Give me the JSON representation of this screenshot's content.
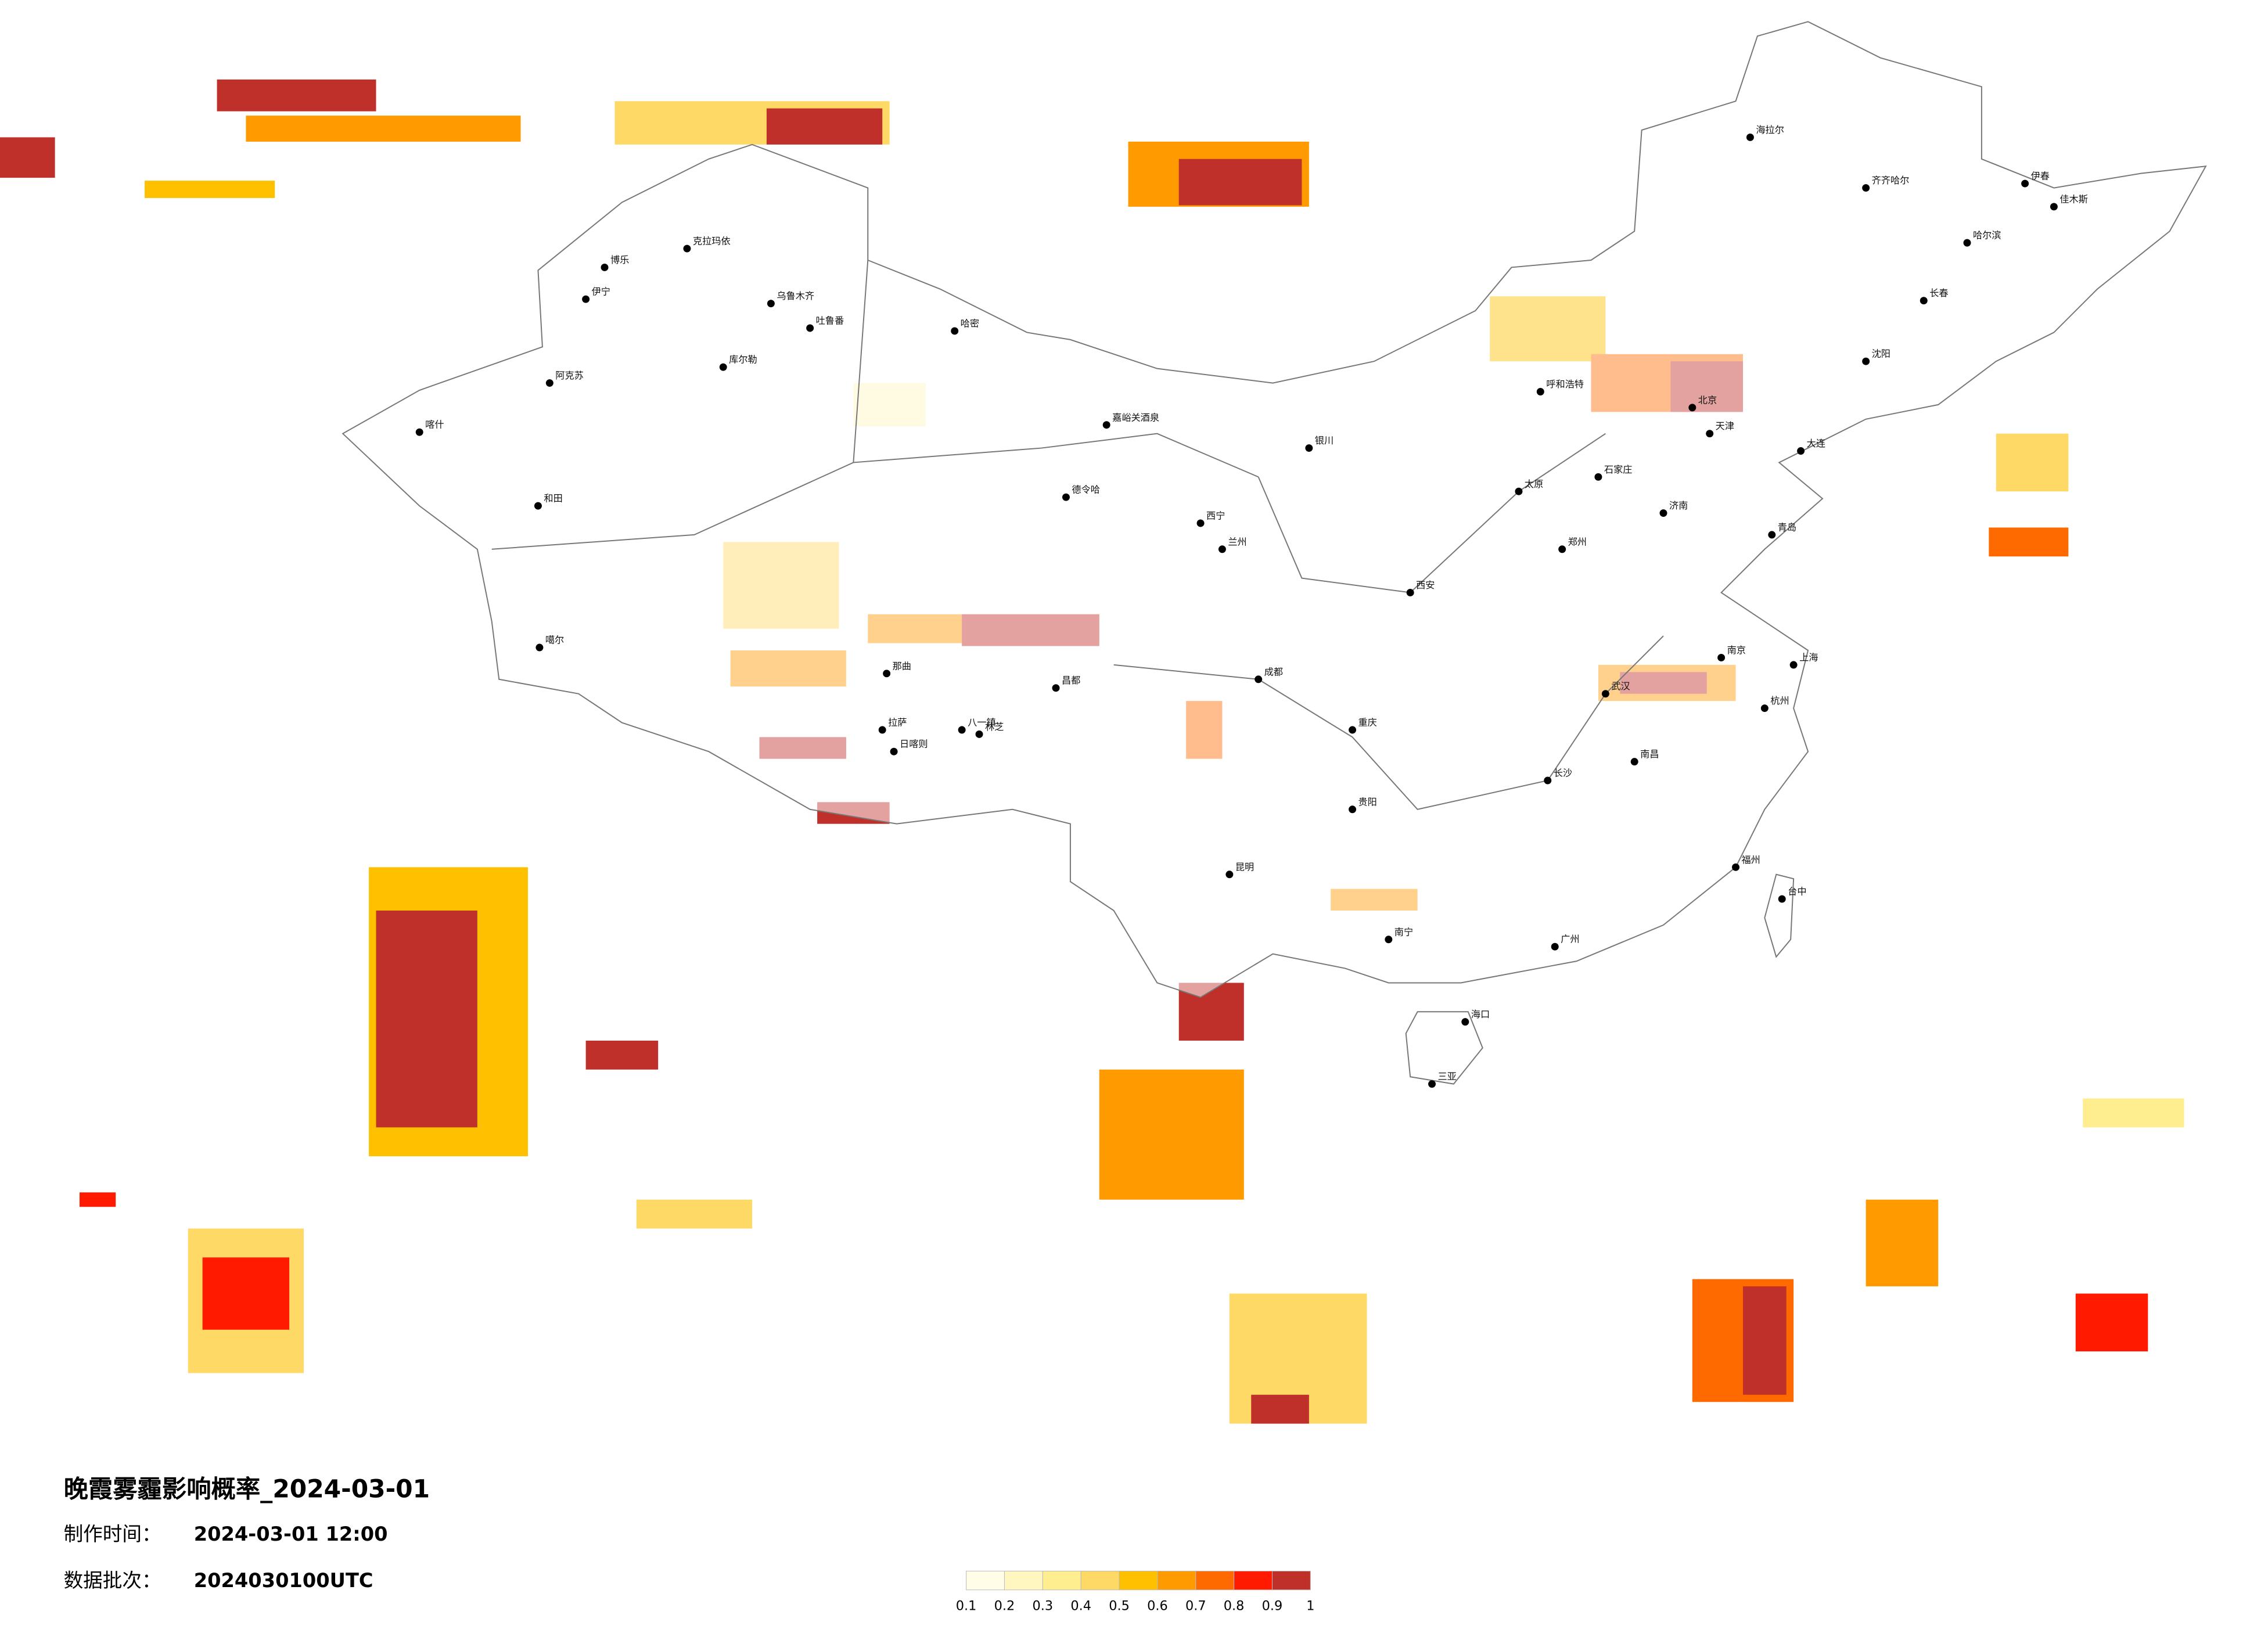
{
  "title": "晚霞雾霾影响概率_2024-03-01",
  "production": {
    "label": "制作时间：",
    "value": "2024-03-01 12:00"
  },
  "batch": {
    "label": "数据批次：",
    "value": "2024030100UTC"
  },
  "legend": {
    "colors": [
      "#fffce8",
      "#fff6c0",
      "#ffee90",
      "#ffd966",
      "#ffc000",
      "#ff9a00",
      "#ff6a00",
      "#ff1a00",
      "#c0302a"
    ],
    "ticks": [
      "0.1",
      "0.2",
      "0.3",
      "0.4",
      "0.5",
      "0.6",
      "0.7",
      "0.8",
      "0.9",
      "1"
    ]
  },
  "cities": [
    "克拉玛依",
    "乌鲁木齐",
    "吐鲁番",
    "哈密",
    "伊宁",
    "博乐",
    "库尔勒",
    "阿克苏",
    "喀什",
    "和田",
    "噶尔",
    "那曲",
    "拉萨",
    "日喀则",
    "八一镇",
    "林芝",
    "昌都",
    "嘉峪关酒泉",
    "德令哈",
    "西宁",
    "兰州",
    "银川",
    "呼和浩特",
    "北京",
    "天津",
    "石家庄",
    "太原",
    "西安",
    "郑州",
    "济南",
    "青岛",
    "南京",
    "上海",
    "杭州",
    "武汉",
    "长沙",
    "南昌",
    "福州",
    "广州",
    "南宁",
    "海口",
    "三亚",
    "贵阳",
    "昆明",
    "成都",
    "重庆",
    "哈尔滨",
    "长春",
    "沈阳",
    "大连",
    "台中",
    "海拉尔",
    "齐齐哈尔",
    "伊春",
    "佳木斯"
  ]
}
